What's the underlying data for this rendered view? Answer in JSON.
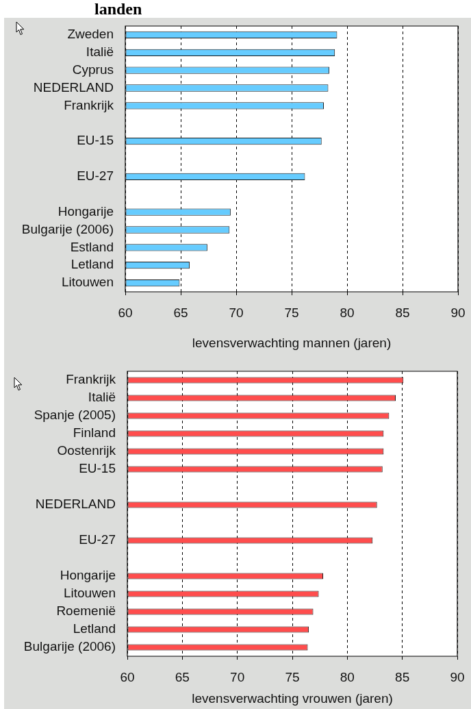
{
  "chart_data": [
    {
      "type": "bar",
      "title": "landen",
      "orientation": "horizontal",
      "categories": [
        "Zweden",
        "Italië",
        "Cyprus",
        "NEDERLAND",
        "Frankrijk",
        null,
        "EU-15",
        null,
        "EU-27",
        null,
        "Hongarije",
        "Bulgarije (2006)",
        "Estland",
        "Letland",
        "Litouwen"
      ],
      "values": [
        79.1,
        78.9,
        78.4,
        78.3,
        77.9,
        null,
        77.7,
        null,
        76.2,
        null,
        69.5,
        69.4,
        67.4,
        65.8,
        64.9
      ],
      "color": "#66ccff",
      "xlabel": "levensverwachting mannen (jaren)",
      "xlim": [
        60,
        90
      ],
      "xticks": [
        60,
        65,
        70,
        75,
        80,
        85,
        90
      ],
      "grid": "x"
    },
    {
      "type": "bar",
      "orientation": "horizontal",
      "categories": [
        "Frankrijk",
        "Italië",
        "Spanje (2005)",
        "Finland",
        "Oostenrijk",
        "EU-15",
        null,
        "NEDERLAND",
        null,
        "EU-27",
        null,
        "Hongarije",
        "Litouwen",
        "Roemenië",
        "Letland",
        "Bulgarije (2006)"
      ],
      "values": [
        85.1,
        84.4,
        83.8,
        83.3,
        83.3,
        83.2,
        null,
        82.7,
        null,
        82.3,
        null,
        77.8,
        77.4,
        76.9,
        76.5,
        76.4
      ],
      "color": "#ff4d4d",
      "xlabel": "levensverwachting vrouwen (jaren)",
      "xlim": [
        60,
        90
      ],
      "xticks": [
        60,
        65,
        70,
        75,
        80,
        85,
        90
      ],
      "grid": "x"
    }
  ]
}
